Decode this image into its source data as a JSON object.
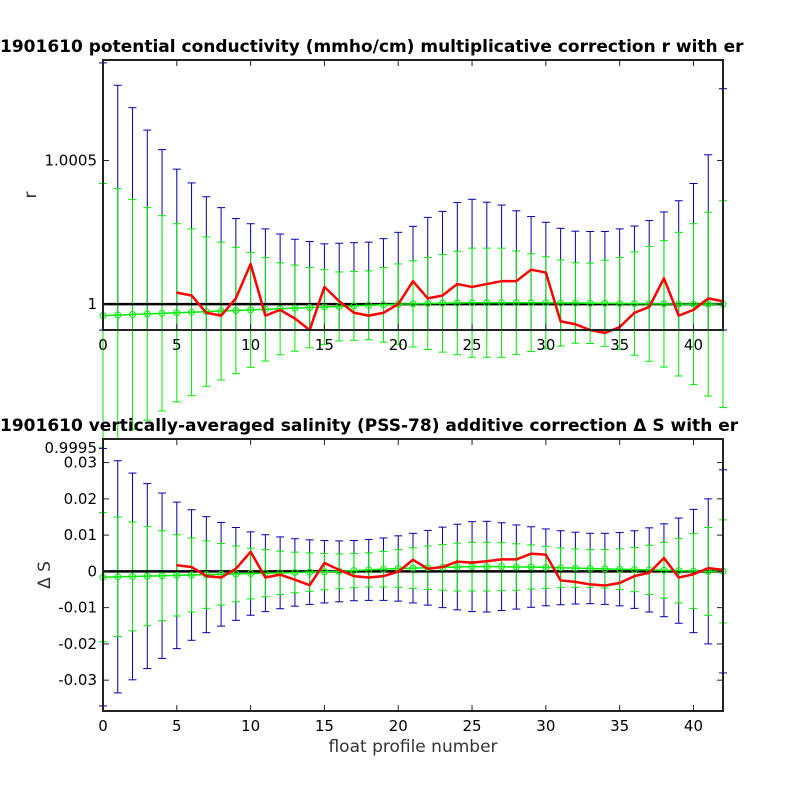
{
  "chart_data": [
    {
      "type": "line",
      "title": "1901610 potential conductivity (mmho/cm) multiplicative correction r with er",
      "xlabel": "",
      "ylabel": "r",
      "xlim": [
        0,
        42
      ],
      "ylim": [
        0.99991,
        1.00085
      ],
      "xticks": [
        0,
        5,
        10,
        15,
        20,
        25,
        30,
        35,
        40
      ],
      "xtick_labels": [
        "0",
        "5",
        "10",
        "15",
        "20",
        "25",
        "30",
        "35",
        "40"
      ],
      "yticks": [
        0.9995,
        1,
        1.0005
      ],
      "ytick_labels": [
        "0.9995",
        "1",
        "1.0005"
      ],
      "reference_line": 1,
      "colors": {
        "series": "#ff0000",
        "fit": "#00ee00",
        "reference": "#000000",
        "outer_err": "#0000aa"
      },
      "x": [
        0,
        1,
        2,
        3,
        4,
        5,
        6,
        7,
        8,
        9,
        10,
        11,
        12,
        13,
        14,
        15,
        16,
        17,
        18,
        19,
        20,
        21,
        22,
        23,
        24,
        25,
        26,
        27,
        28,
        29,
        30,
        31,
        32,
        33,
        34,
        35,
        36,
        37,
        38,
        39,
        40,
        41,
        42
      ],
      "series_x": [
        5,
        6,
        7,
        8,
        9,
        10,
        11,
        12,
        13,
        14,
        15,
        16,
        17,
        18,
        19,
        20,
        21,
        22,
        23,
        24,
        25,
        26,
        27,
        28,
        29,
        30,
        31,
        32,
        33,
        34,
        35,
        36,
        37,
        38,
        39,
        40,
        41,
        42
      ],
      "series_values": [
        1.00004,
        1.00003,
        0.99997,
        0.99996,
        1.00002,
        1.00014,
        0.99996,
        0.99998,
        0.99995,
        0.99991,
        1.00006,
        1.00001,
        0.99997,
        0.99996,
        0.99997,
        1.0,
        1.00008,
        1.00002,
        1.00003,
        1.00007,
        1.00006,
        1.00007,
        1.00008,
        1.00008,
        1.00012,
        1.00011,
        0.99994,
        0.99993,
        0.99991,
        0.9999,
        0.99992,
        0.99997,
        0.99999,
        1.00009,
        0.99996,
        0.99998,
        1.00002,
        1.00001
      ],
      "fit_values": [
        0.99996,
        0.999962,
        0.999964,
        0.999966,
        0.999968,
        0.99997,
        0.999972,
        0.999974,
        0.999976,
        0.999978,
        0.99998,
        0.999982,
        0.999984,
        0.999986,
        0.999988,
        0.99999,
        0.999992,
        0.999994,
        0.999996,
        0.999998,
        1.0,
        1.000001,
        1.000002,
        1.000003,
        1.000004,
        1.000005,
        1.000005,
        1.000005,
        1.000005,
        1.000005,
        1.000005,
        1.000004,
        1.000004,
        1.000003,
        1.000003,
        1.000002,
        1.000002,
        1.000001,
        1.000001,
        1.0,
        1.0,
        1.0,
        1.0
      ],
      "inner_err": [
        0.00046,
        0.00044,
        0.0004,
        0.00037,
        0.00034,
        0.00031,
        0.00029,
        0.00026,
        0.00024,
        0.00022,
        0.0002,
        0.00018,
        0.00016,
        0.00015,
        0.00014,
        0.00013,
        0.00012,
        0.00012,
        0.00012,
        0.00013,
        0.00014,
        0.00015,
        0.00016,
        0.00017,
        0.00018,
        0.00019,
        0.00019,
        0.00019,
        0.00018,
        0.00017,
        0.00016,
        0.00015,
        0.00014,
        0.00014,
        0.00015,
        0.00016,
        0.00018,
        0.0002,
        0.00022,
        0.00025,
        0.00028,
        0.00032,
        0.00036
      ],
      "outer_err": [
        0.00088,
        0.0008,
        0.00072,
        0.00064,
        0.00057,
        0.0005,
        0.00045,
        0.0004,
        0.00036,
        0.00032,
        0.0003,
        0.00028,
        0.00026,
        0.00024,
        0.00023,
        0.00022,
        0.00022,
        0.00022,
        0.00022,
        0.00023,
        0.00025,
        0.00027,
        0.0003,
        0.00032,
        0.00035,
        0.00036,
        0.00035,
        0.00034,
        0.00032,
        0.0003,
        0.00028,
        0.00026,
        0.00025,
        0.00025,
        0.00025,
        0.00026,
        0.00027,
        0.00029,
        0.00032,
        0.00036,
        0.00042,
        0.00052,
        0.00075
      ]
    },
    {
      "type": "line",
      "title": "1901610 vertically-averaged salinity (PSS-78) additive correction Δ S with er",
      "xlabel": "float profile number",
      "ylabel": "Δ S",
      "xlim": [
        0,
        42
      ],
      "ylim": [
        -0.0385,
        0.0365
      ],
      "xticks": [
        0,
        5,
        10,
        15,
        20,
        25,
        30,
        35,
        40
      ],
      "xtick_labels": [
        "0",
        "5",
        "10",
        "15",
        "20",
        "25",
        "30",
        "35",
        "40"
      ],
      "yticks": [
        -0.03,
        -0.02,
        -0.01,
        0,
        0.01,
        0.02,
        0.03
      ],
      "ytick_labels": [
        "-0.03",
        "-0.02",
        "-0.01",
        "0",
        "0.01",
        "0.02",
        "0.03"
      ],
      "reference_line": 0,
      "colors": {
        "series": "#ff0000",
        "fit": "#00ee00",
        "reference": "#000000",
        "outer_err": "#0000aa"
      },
      "x": [
        0,
        1,
        2,
        3,
        4,
        5,
        6,
        7,
        8,
        9,
        10,
        11,
        12,
        13,
        14,
        15,
        16,
        17,
        18,
        19,
        20,
        21,
        22,
        23,
        24,
        25,
        26,
        27,
        28,
        29,
        30,
        31,
        32,
        33,
        34,
        35,
        36,
        37,
        38,
        39,
        40,
        41,
        42
      ],
      "series_x": [
        5,
        6,
        7,
        8,
        9,
        10,
        11,
        12,
        13,
        14,
        15,
        16,
        17,
        18,
        19,
        20,
        21,
        22,
        23,
        24,
        25,
        26,
        27,
        28,
        29,
        30,
        31,
        32,
        33,
        34,
        35,
        36,
        37,
        38,
        39,
        40,
        41,
        42
      ],
      "series_values": [
        0.0017,
        0.0012,
        -0.0013,
        -0.0017,
        0.0007,
        0.0054,
        -0.0017,
        -0.0009,
        -0.0023,
        -0.0038,
        0.0023,
        0.0004,
        -0.0013,
        -0.0017,
        -0.0013,
        -0.0001,
        0.0032,
        0.0007,
        0.0012,
        0.0027,
        0.0024,
        0.0028,
        0.0033,
        0.0033,
        0.0049,
        0.0046,
        -0.0025,
        -0.0029,
        -0.0036,
        -0.0039,
        -0.0032,
        -0.0013,
        -0.0004,
        0.0037,
        -0.0017,
        -0.0008,
        0.0009,
        0.0004
      ],
      "fit_values": [
        -0.0016,
        -0.0015,
        -0.0014,
        -0.0013,
        -0.0012,
        -0.0011,
        -0.001,
        -0.0009,
        -0.0008,
        -0.0007,
        -0.0006,
        -0.0005,
        -0.0004,
        -0.0003,
        -0.0002,
        -0.0001,
        0.0,
        0.0002,
        0.0004,
        0.0006,
        0.0008,
        0.0009,
        0.001,
        0.0011,
        0.0012,
        0.0013,
        0.0013,
        0.0013,
        0.0012,
        0.0012,
        0.0011,
        0.001,
        0.0009,
        0.0008,
        0.0007,
        0.0006,
        0.0005,
        0.0004,
        0.0003,
        0.0002,
        0.0001,
        0.0,
        0.0
      ],
      "inner_err": [
        0.0178,
        0.0165,
        0.015,
        0.0137,
        0.0124,
        0.0112,
        0.0102,
        0.0093,
        0.0085,
        0.0077,
        0.007,
        0.0065,
        0.006,
        0.0056,
        0.0053,
        0.005,
        0.0048,
        0.0047,
        0.0047,
        0.0049,
        0.0052,
        0.0056,
        0.006,
        0.0063,
        0.0066,
        0.0067,
        0.0067,
        0.0066,
        0.0064,
        0.0061,
        0.0058,
        0.0055,
        0.0053,
        0.0052,
        0.0053,
        0.0056,
        0.0061,
        0.0068,
        0.0077,
        0.0089,
        0.0103,
        0.0121,
        0.0142
      ],
      "outer_err": [
        0.0355,
        0.032,
        0.0285,
        0.0255,
        0.0228,
        0.0202,
        0.018,
        0.016,
        0.0143,
        0.0128,
        0.0115,
        0.0106,
        0.0099,
        0.0093,
        0.0089,
        0.0086,
        0.0084,
        0.0083,
        0.0084,
        0.0086,
        0.009,
        0.0096,
        0.0103,
        0.0111,
        0.0118,
        0.0124,
        0.0125,
        0.0121,
        0.0116,
        0.0111,
        0.0106,
        0.0102,
        0.0099,
        0.0097,
        0.0098,
        0.0101,
        0.0107,
        0.0116,
        0.0128,
        0.0145,
        0.017,
        0.02,
        0.028
      ]
    }
  ]
}
